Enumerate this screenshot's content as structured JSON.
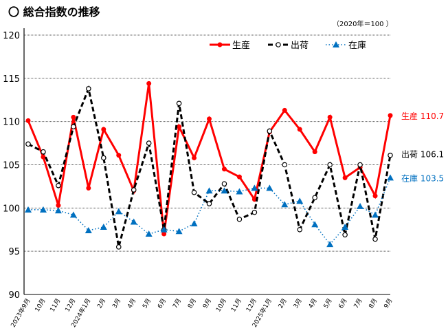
{
  "title": "〇 総合指数の推移",
  "unit_note": "（2020年＝100 ）",
  "chart_data": {
    "type": "line",
    "title": "総合指数の推移",
    "ylim": [
      90,
      120
    ],
    "yticks": [
      90,
      95,
      100,
      105,
      110,
      115,
      120
    ],
    "grid": true,
    "legend_position": "top-right",
    "categories": [
      "2023年9月",
      "10月",
      "11月",
      "12月",
      "2024年1月",
      "2月",
      "3月",
      "4月",
      "5月",
      "6月",
      "7月",
      "8月",
      "9月",
      "10月",
      "11月",
      "12月",
      "2025年1月",
      "2月",
      "3月",
      "4月",
      "5月",
      "6月",
      "7月",
      "8月",
      "9月"
    ],
    "series": [
      {
        "name": "生産",
        "color": "#FF0000",
        "style": "solid",
        "marker": "filled-circle",
        "values": [
          110.1,
          105.9,
          100.3,
          110.5,
          102.3,
          109.1,
          106.1,
          102.0,
          114.4,
          97.0,
          109.4,
          105.8,
          110.3,
          104.5,
          103.6,
          101.0,
          108.8,
          111.3,
          109.1,
          106.5,
          110.5,
          103.5,
          104.7,
          101.4,
          110.7
        ],
        "end_label": "生産 110.7"
      },
      {
        "name": "出荷",
        "color": "#000000",
        "style": "dashed",
        "marker": "open-circle",
        "values": [
          107.4,
          106.5,
          102.6,
          109.4,
          113.8,
          105.8,
          95.5,
          102.1,
          107.5,
          97.5,
          112.1,
          101.8,
          100.5,
          102.8,
          98.7,
          99.5,
          108.9,
          105.0,
          97.5,
          101.2,
          105.0,
          96.9,
          105.0,
          96.4,
          106.1
        ],
        "end_label": "出荷 106.1"
      },
      {
        "name": "在庫",
        "color": "#0070C0",
        "style": "dotted",
        "marker": "triangle",
        "values": [
          99.8,
          99.8,
          99.7,
          99.2,
          97.4,
          97.8,
          99.6,
          98.4,
          97.0,
          97.5,
          97.3,
          98.2,
          102.0,
          102.0,
          101.9,
          102.3,
          102.3,
          100.4,
          100.8,
          98.1,
          95.8,
          97.8,
          100.2,
          99.2,
          103.5
        ],
        "end_label": "在庫 103.5"
      }
    ]
  }
}
